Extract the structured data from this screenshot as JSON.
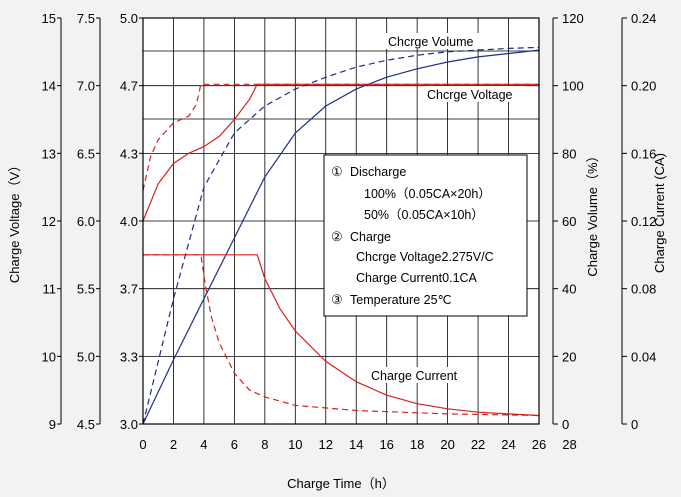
{
  "chart_data": {
    "type": "line",
    "xlabel": "Charge Time（h）",
    "x_ticks": [
      "0",
      "2",
      "4",
      "6",
      "8",
      "10",
      "12",
      "14",
      "16",
      "18",
      "20",
      "22",
      "24",
      "26",
      "28"
    ],
    "xlim": [
      0,
      26
    ],
    "left_axes": [
      {
        "id": "axis-charge-voltage-15v",
        "label": "Charge Voltage（V）",
        "ticks": [
          "15",
          "14",
          "13",
          "12",
          "11",
          "10",
          "9"
        ]
      },
      {
        "id": "axis-charge-voltage-7v",
        "label": "",
        "ticks": [
          "7.5",
          "7.0",
          "6.5",
          "6.0",
          "5.5",
          "5.0",
          "4.5"
        ]
      },
      {
        "id": "axis-charge-voltage-5v",
        "label": "",
        "ticks": [
          "5.0",
          "4.7",
          "4.3",
          "4.0",
          "3.7",
          "3.3",
          "3.0"
        ]
      }
    ],
    "right_axes": [
      {
        "id": "axis-charge-volume",
        "label": "Charge Volume（%）",
        "ticks": [
          "120",
          "100",
          "80",
          "60",
          "40",
          "20",
          "0"
        ]
      },
      {
        "id": "axis-charge-current",
        "label": "Charge Current (CA)",
        "ticks": [
          "0.24",
          "0.20",
          "0.16",
          "0.12",
          "0.08",
          "0.04",
          "0"
        ]
      }
    ],
    "series_labels": {
      "volume": "Chcrge Volume",
      "voltage": "Chcrge Voltage",
      "current": "Charge Current"
    },
    "series": [
      {
        "quantity": "volume",
        "discharge": "100%",
        "color": "#1f2d8a",
        "dash": false,
        "unit": "%",
        "points": [
          [
            0,
            0
          ],
          [
            2,
            19
          ],
          [
            4,
            37
          ],
          [
            6,
            55
          ],
          [
            8,
            73
          ],
          [
            10,
            86
          ],
          [
            12,
            94
          ],
          [
            14,
            99
          ],
          [
            16,
            102.5
          ],
          [
            18,
            105
          ],
          [
            20,
            107
          ],
          [
            22,
            108.5
          ],
          [
            24,
            109.5
          ],
          [
            26,
            110.5
          ]
        ]
      },
      {
        "quantity": "volume",
        "discharge": "50%",
        "color": "#1f2d8a",
        "dash": true,
        "unit": "%",
        "points": [
          [
            0,
            0
          ],
          [
            2,
            37
          ],
          [
            4,
            70
          ],
          [
            6,
            86
          ],
          [
            8,
            94
          ],
          [
            10,
            99
          ],
          [
            12,
            102.5
          ],
          [
            14,
            105.5
          ],
          [
            16,
            107.5
          ],
          [
            18,
            109
          ],
          [
            20,
            110
          ],
          [
            22,
            110.5
          ],
          [
            24,
            111
          ],
          [
            26,
            111.3
          ]
        ]
      },
      {
        "quantity": "voltage",
        "discharge": "100%",
        "color": "#d62020",
        "dash": false,
        "unit": "V",
        "points": [
          [
            0,
            12
          ],
          [
            1,
            12.55
          ],
          [
            2,
            12.85
          ],
          [
            3,
            13
          ],
          [
            4,
            13.1
          ],
          [
            5,
            13.25
          ],
          [
            6,
            13.5
          ],
          [
            7,
            13.8
          ],
          [
            7.5,
            14.02
          ],
          [
            26,
            14.02
          ]
        ]
      },
      {
        "quantity": "voltage",
        "discharge": "50%",
        "color": "#d62020",
        "dash": true,
        "unit": "V",
        "points": [
          [
            0,
            12.45
          ],
          [
            0.5,
            12.95
          ],
          [
            1,
            13.2
          ],
          [
            2,
            13.45
          ],
          [
            3,
            13.55
          ],
          [
            3.5,
            13.72
          ],
          [
            3.8,
            14.02
          ],
          [
            26,
            14.02
          ]
        ]
      },
      {
        "quantity": "current",
        "discharge": "100%",
        "color": "#d62020",
        "dash": false,
        "unit": "CA",
        "points": [
          [
            0,
            0.1
          ],
          [
            7.5,
            0.1
          ],
          [
            8,
            0.086
          ],
          [
            9,
            0.068
          ],
          [
            10,
            0.055
          ],
          [
            12,
            0.037
          ],
          [
            14,
            0.025
          ],
          [
            16,
            0.017
          ],
          [
            18,
            0.012
          ],
          [
            20,
            0.009
          ],
          [
            22,
            0.007
          ],
          [
            24,
            0.006
          ],
          [
            26,
            0.005
          ]
        ]
      },
      {
        "quantity": "current",
        "discharge": "50%",
        "color": "#d62020",
        "dash": true,
        "unit": "CA",
        "points": [
          [
            0,
            0.1
          ],
          [
            3.8,
            0.1
          ],
          [
            4.1,
            0.082
          ],
          [
            4.5,
            0.063
          ],
          [
            5,
            0.048
          ],
          [
            6,
            0.03
          ],
          [
            7,
            0.02
          ],
          [
            8,
            0.016
          ],
          [
            10,
            0.011
          ],
          [
            14,
            0.008
          ],
          [
            20,
            0.006
          ],
          [
            26,
            0.005
          ]
        ]
      }
    ],
    "notes": {
      "items": [
        {
          "marker": "①",
          "text": "Discharge"
        },
        {
          "marker": "",
          "text": "100%（0.05CA×20h）"
        },
        {
          "marker": "",
          "text": "50%（0.05CA×10h）"
        },
        {
          "marker": "②",
          "text": "Charge"
        },
        {
          "marker": "",
          "text": "Chcrge Voltage2.275V/C"
        },
        {
          "marker": "",
          "text": "Charge Current0.1CA"
        },
        {
          "marker": "③",
          "text": "Temperature 25℃"
        }
      ]
    },
    "grid": true
  }
}
